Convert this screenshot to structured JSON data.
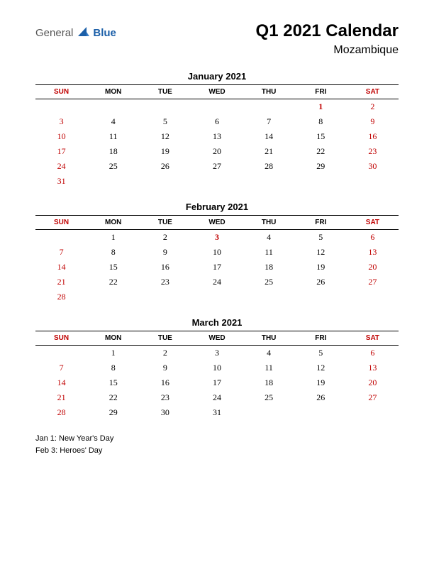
{
  "logo": {
    "text1": "General",
    "text2": "Blue",
    "accent_color": "#1b5fa8"
  },
  "title": "Q1 2021 Calendar",
  "subtitle": "Mozambique",
  "day_headers": [
    "SUN",
    "MON",
    "TUE",
    "WED",
    "THU",
    "FRI",
    "SAT"
  ],
  "weekend_cols": [
    0,
    6
  ],
  "header_text_color": "#000000",
  "header_weekend_color": "#c00000",
  "cell_text_color": "#000000",
  "cell_weekend_color": "#c00000",
  "holiday_color": "#c00000",
  "border_color": "#000000",
  "background_color": "#ffffff",
  "months": [
    {
      "name": "January 2021",
      "weeks": [
        [
          "",
          "",
          "",
          "",
          "",
          "1",
          "2"
        ],
        [
          "3",
          "4",
          "5",
          "6",
          "7",
          "8",
          "9"
        ],
        [
          "10",
          "11",
          "12",
          "13",
          "14",
          "15",
          "16"
        ],
        [
          "17",
          "18",
          "19",
          "20",
          "21",
          "22",
          "23"
        ],
        [
          "24",
          "25",
          "26",
          "27",
          "28",
          "29",
          "30"
        ],
        [
          "31",
          "",
          "",
          "",
          "",
          "",
          ""
        ]
      ],
      "holidays": [
        [
          0,
          5
        ]
      ]
    },
    {
      "name": "February 2021",
      "weeks": [
        [
          "",
          "1",
          "2",
          "3",
          "4",
          "5",
          "6"
        ],
        [
          "7",
          "8",
          "9",
          "10",
          "11",
          "12",
          "13"
        ],
        [
          "14",
          "15",
          "16",
          "17",
          "18",
          "19",
          "20"
        ],
        [
          "21",
          "22",
          "23",
          "24",
          "25",
          "26",
          "27"
        ],
        [
          "28",
          "",
          "",
          "",
          "",
          "",
          ""
        ]
      ],
      "holidays": [
        [
          0,
          3
        ]
      ]
    },
    {
      "name": "March 2021",
      "weeks": [
        [
          "",
          "1",
          "2",
          "3",
          "4",
          "5",
          "6"
        ],
        [
          "7",
          "8",
          "9",
          "10",
          "11",
          "12",
          "13"
        ],
        [
          "14",
          "15",
          "16",
          "17",
          "18",
          "19",
          "20"
        ],
        [
          "21",
          "22",
          "23",
          "24",
          "25",
          "26",
          "27"
        ],
        [
          "28",
          "29",
          "30",
          "31",
          "",
          "",
          ""
        ]
      ],
      "holidays": []
    }
  ],
  "notes": [
    "Jan 1: New Year's Day",
    "Feb 3: Heroes' Day"
  ]
}
